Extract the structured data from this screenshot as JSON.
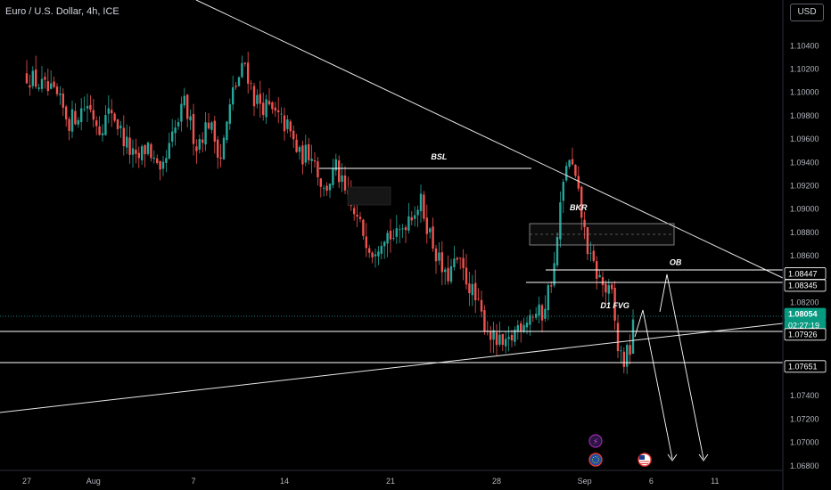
{
  "window": {
    "title": "Euro / U.S. Dollar, 4h, ICE",
    "currency_button": "USD"
  },
  "chart_data": {
    "type": "candlestick",
    "symbol": "Euro / U.S. Dollar",
    "interval": "4h",
    "exchange": "ICE",
    "ylim": [
      1.0676,
      1.107
    ],
    "y_ticks": [
      "1.10400",
      "1.10200",
      "1.10000",
      "1.09800",
      "1.09600",
      "1.09400",
      "1.09200",
      "1.09000",
      "1.08800",
      "1.08600",
      "1.08200",
      "1.07400",
      "1.07200",
      "1.07000",
      "1.06800"
    ],
    "x_ticks": [
      {
        "label": "27",
        "bar": 0
      },
      {
        "label": "Aug",
        "bar": 22
      },
      {
        "label": "7",
        "bar": 55
      },
      {
        "label": "14",
        "bar": 85
      },
      {
        "label": "21",
        "bar": 120
      },
      {
        "label": "28",
        "bar": 155
      },
      {
        "label": "Sep",
        "bar": 184
      },
      {
        "label": "6",
        "bar": 206
      },
      {
        "label": "11",
        "bar": 227
      }
    ],
    "price_tags": [
      {
        "label": "1.08447",
        "value": 1.08447,
        "style": "line"
      },
      {
        "label": "1.08345",
        "value": 1.08345,
        "style": "line"
      },
      {
        "label": "1.08054",
        "value": 1.08054,
        "style": "current"
      },
      {
        "label": "02:27:19",
        "value": 1.08054,
        "style": "countdown"
      },
      {
        "label": "1.07926",
        "value": 1.07926,
        "style": "line"
      },
      {
        "label": "1.07651",
        "value": 1.07651,
        "style": "line"
      }
    ],
    "annotations": [
      {
        "text": "BSL",
        "bar": 136,
        "price": 1.09425
      },
      {
        "text": "BKR",
        "bar": 182,
        "price": 1.0899
      },
      {
        "text": "OB",
        "bar": 214,
        "price": 1.0852
      },
      {
        "text": "D1 FVG",
        "bar": 194,
        "price": 1.0815
      }
    ],
    "anchors": [
      [
        0,
        1.1015
      ],
      [
        10,
        1.0995
      ],
      [
        14,
        1.0975
      ],
      [
        20,
        1.099
      ],
      [
        24,
        1.097
      ],
      [
        28,
        1.0985
      ],
      [
        32,
        1.096
      ],
      [
        36,
        1.094
      ],
      [
        40,
        1.0955
      ],
      [
        44,
        1.0925
      ],
      [
        48,
        1.096
      ],
      [
        52,
        1.099
      ],
      [
        56,
        1.0955
      ],
      [
        60,
        1.0975
      ],
      [
        64,
        1.0945
      ],
      [
        68,
        1.1
      ],
      [
        72,
        1.1025
      ],
      [
        75,
        1.0995
      ],
      [
        80,
        1.0985
      ],
      [
        86,
        1.097
      ],
      [
        90,
        1.0945
      ],
      [
        94,
        1.095
      ],
      [
        98,
        1.0915
      ],
      [
        102,
        1.0935
      ],
      [
        106,
        1.0905
      ],
      [
        110,
        1.0885
      ],
      [
        114,
        1.0865
      ],
      [
        118,
        1.088
      ],
      [
        122,
        1.0875
      ],
      [
        126,
        1.0895
      ],
      [
        130,
        1.0905
      ],
      [
        134,
        1.087
      ],
      [
        138,
        1.084
      ],
      [
        142,
        1.0855
      ],
      [
        146,
        1.0835
      ],
      [
        150,
        1.0808
      ],
      [
        154,
        1.0788
      ],
      [
        158,
        1.078
      ],
      [
        162,
        1.08
      ],
      [
        166,
        1.081
      ],
      [
        170,
        1.081
      ],
      [
        174,
        1.085
      ],
      [
        176,
        1.09
      ],
      [
        178,
        1.094
      ],
      [
        180,
        1.0935
      ],
      [
        182,
        1.091
      ],
      [
        184,
        1.088
      ],
      [
        186,
        1.0855
      ],
      [
        189,
        1.084
      ],
      [
        191,
        1.083
      ],
      [
        193,
        1.0825
      ],
      [
        195,
        1.078
      ],
      [
        197,
        1.077
      ],
      [
        199,
        1.078
      ],
      [
        200,
        1.0805
      ]
    ]
  }
}
